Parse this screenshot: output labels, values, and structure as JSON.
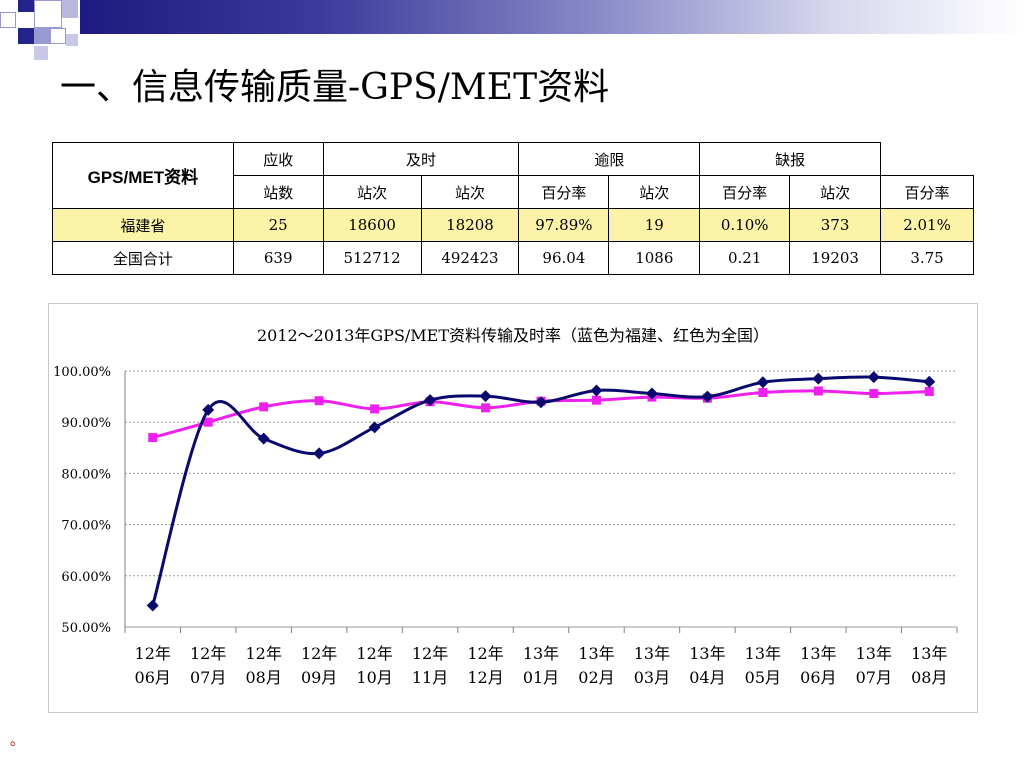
{
  "slide": {
    "title": "一、信息传输质量-GPS/MET资料",
    "footnote": "。"
  },
  "table": {
    "corner": "GPS/MET资料",
    "groups": [
      "应收",
      "及时",
      "逾限",
      "缺报"
    ],
    "subheaders": [
      "站数",
      "站次",
      "站次",
      "百分率",
      "站次",
      "百分率",
      "站次",
      "百分率"
    ],
    "rows": [
      {
        "label": "福建省",
        "cells": [
          "25",
          "18600",
          "18208",
          "97.89%",
          "19",
          "0.10%",
          "373",
          "2.01%"
        ]
      },
      {
        "label": "全国合计",
        "cells": [
          "639",
          "512712",
          "492423",
          "96.04",
          "1086",
          "0.21",
          "19203",
          "3.75"
        ]
      }
    ]
  },
  "chart_data": {
    "type": "line",
    "title": "2012～2013年GPS/MET资料传输及时率（蓝色为福建、红色为全国）",
    "x": [
      "12年06月",
      "12年07月",
      "12年08月",
      "12年09月",
      "12年10月",
      "12年11月",
      "12年12月",
      "13年01月",
      "13年02月",
      "13年03月",
      "13年04月",
      "13年05月",
      "13年06月",
      "13年07月",
      "13年08月"
    ],
    "x_top": [
      "12年",
      "12年",
      "12年",
      "12年",
      "12年",
      "12年",
      "12年",
      "13年",
      "13年",
      "13年",
      "13年",
      "13年",
      "13年",
      "13年",
      "13年"
    ],
    "x_bottom": [
      "06月",
      "07月",
      "08月",
      "09月",
      "10月",
      "11月",
      "12月",
      "01月",
      "02月",
      "03月",
      "04月",
      "05月",
      "06月",
      "07月",
      "08月"
    ],
    "yticks": [
      "50.00%",
      "60.00%",
      "70.00%",
      "80.00%",
      "90.00%",
      "100.00%"
    ],
    "ylim": [
      50,
      100
    ],
    "grid": true,
    "series": [
      {
        "color": "#0a0a6e",
        "marker": "diamond",
        "values": [
          54.2,
          92.4,
          86.8,
          83.9,
          89.0,
          94.3,
          95.1,
          93.9,
          96.2,
          95.6,
          95.0,
          97.8,
          98.5,
          98.8,
          97.9
        ]
      },
      {
        "color": "#ee20ee",
        "marker": "square",
        "values": [
          87.0,
          90.0,
          93.0,
          94.2,
          92.6,
          94.0,
          92.8,
          94.1,
          94.3,
          94.9,
          94.7,
          95.8,
          96.1,
          95.6,
          96.0
        ]
      }
    ]
  },
  "colors": {
    "highlight_row": "#fbf3a8",
    "header_gradient_start": "#1c1c80",
    "square_dark": "#23238a",
    "square_light": "#9a9ad2"
  }
}
